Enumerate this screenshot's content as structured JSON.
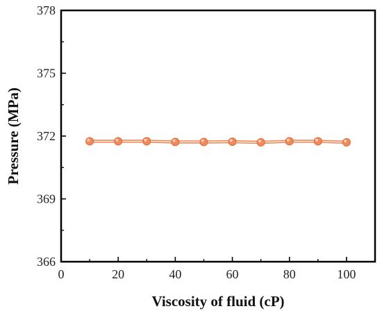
{
  "chart_data": {
    "type": "line",
    "title": "",
    "xlabel": "Viscosity of fluid (cP)",
    "ylabel": "Pressure (MPa)",
    "xlim": [
      0,
      110
    ],
    "ylim": [
      366,
      378
    ],
    "xticks": [
      0,
      20,
      40,
      60,
      80,
      100
    ],
    "yticks": [
      366,
      369,
      372,
      375,
      378
    ],
    "x_tick_labels": [
      "0",
      "20",
      "40",
      "60",
      "80",
      "100"
    ],
    "y_tick_labels": [
      "366",
      "369",
      "372",
      "375",
      "378"
    ],
    "grid": false,
    "legend": "none",
    "series": [
      {
        "color": "#f08a5a",
        "marker": "circle",
        "x": [
          10,
          20,
          30,
          40,
          50,
          60,
          70,
          80,
          90,
          100
        ],
        "y": [
          371.75,
          371.75,
          371.75,
          371.72,
          371.72,
          371.73,
          371.7,
          371.75,
          371.75,
          371.7
        ]
      }
    ]
  }
}
